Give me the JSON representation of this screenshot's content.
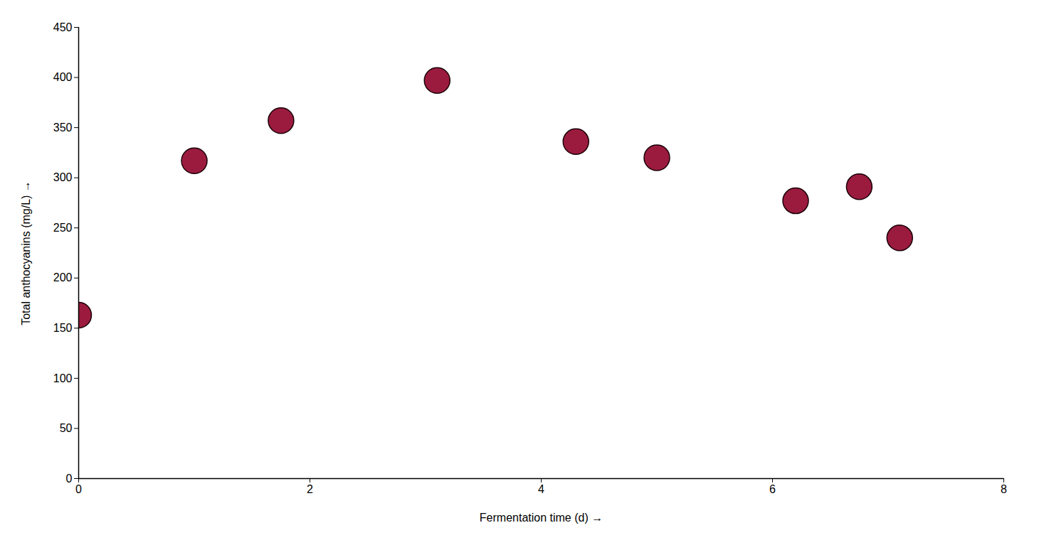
{
  "chart_data": {
    "type": "scatter",
    "x": [
      0,
      1,
      1.75,
      3.1,
      4.3,
      5.0,
      6.2,
      6.75,
      7.1
    ],
    "values": [
      163,
      317,
      357,
      397,
      336,
      320,
      277,
      291,
      240
    ],
    "color": "#9B1B3E",
    "marker": "circle",
    "x_label": "Fermentation time (d)",
    "y_label": "Total anthocyanins (mg/L)",
    "xlim": [
      0,
      8
    ],
    "ylim": [
      0,
      450
    ],
    "xticks": [
      0,
      2,
      4,
      6,
      8
    ],
    "yticks": [
      0,
      50,
      100,
      150,
      200,
      250,
      300,
      350,
      400,
      450
    ],
    "grid": false
  }
}
